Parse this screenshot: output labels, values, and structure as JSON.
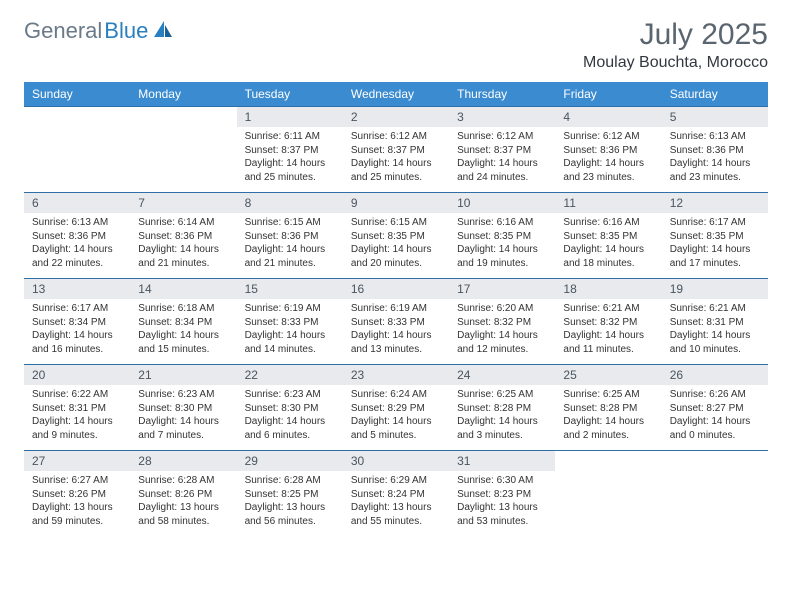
{
  "logo": {
    "text1": "General",
    "text2": "Blue"
  },
  "title": "July 2025",
  "location": "Moulay Bouchta, Morocco",
  "header_bg": "#3b8bd0",
  "daynum_bg": "#e8eaed",
  "week_border": "#2f6fa8",
  "day_headers": [
    "Sunday",
    "Monday",
    "Tuesday",
    "Wednesday",
    "Thursday",
    "Friday",
    "Saturday"
  ],
  "weeks": [
    [
      null,
      null,
      {
        "n": "1",
        "sunrise": "6:11 AM",
        "sunset": "8:37 PM",
        "daylight": "14 hours and 25 minutes."
      },
      {
        "n": "2",
        "sunrise": "6:12 AM",
        "sunset": "8:37 PM",
        "daylight": "14 hours and 25 minutes."
      },
      {
        "n": "3",
        "sunrise": "6:12 AM",
        "sunset": "8:37 PM",
        "daylight": "14 hours and 24 minutes."
      },
      {
        "n": "4",
        "sunrise": "6:12 AM",
        "sunset": "8:36 PM",
        "daylight": "14 hours and 23 minutes."
      },
      {
        "n": "5",
        "sunrise": "6:13 AM",
        "sunset": "8:36 PM",
        "daylight": "14 hours and 23 minutes."
      }
    ],
    [
      {
        "n": "6",
        "sunrise": "6:13 AM",
        "sunset": "8:36 PM",
        "daylight": "14 hours and 22 minutes."
      },
      {
        "n": "7",
        "sunrise": "6:14 AM",
        "sunset": "8:36 PM",
        "daylight": "14 hours and 21 minutes."
      },
      {
        "n": "8",
        "sunrise": "6:15 AM",
        "sunset": "8:36 PM",
        "daylight": "14 hours and 21 minutes."
      },
      {
        "n": "9",
        "sunrise": "6:15 AM",
        "sunset": "8:35 PM",
        "daylight": "14 hours and 20 minutes."
      },
      {
        "n": "10",
        "sunrise": "6:16 AM",
        "sunset": "8:35 PM",
        "daylight": "14 hours and 19 minutes."
      },
      {
        "n": "11",
        "sunrise": "6:16 AM",
        "sunset": "8:35 PM",
        "daylight": "14 hours and 18 minutes."
      },
      {
        "n": "12",
        "sunrise": "6:17 AM",
        "sunset": "8:35 PM",
        "daylight": "14 hours and 17 minutes."
      }
    ],
    [
      {
        "n": "13",
        "sunrise": "6:17 AM",
        "sunset": "8:34 PM",
        "daylight": "14 hours and 16 minutes."
      },
      {
        "n": "14",
        "sunrise": "6:18 AM",
        "sunset": "8:34 PM",
        "daylight": "14 hours and 15 minutes."
      },
      {
        "n": "15",
        "sunrise": "6:19 AM",
        "sunset": "8:33 PM",
        "daylight": "14 hours and 14 minutes."
      },
      {
        "n": "16",
        "sunrise": "6:19 AM",
        "sunset": "8:33 PM",
        "daylight": "14 hours and 13 minutes."
      },
      {
        "n": "17",
        "sunrise": "6:20 AM",
        "sunset": "8:32 PM",
        "daylight": "14 hours and 12 minutes."
      },
      {
        "n": "18",
        "sunrise": "6:21 AM",
        "sunset": "8:32 PM",
        "daylight": "14 hours and 11 minutes."
      },
      {
        "n": "19",
        "sunrise": "6:21 AM",
        "sunset": "8:31 PM",
        "daylight": "14 hours and 10 minutes."
      }
    ],
    [
      {
        "n": "20",
        "sunrise": "6:22 AM",
        "sunset": "8:31 PM",
        "daylight": "14 hours and 9 minutes."
      },
      {
        "n": "21",
        "sunrise": "6:23 AM",
        "sunset": "8:30 PM",
        "daylight": "14 hours and 7 minutes."
      },
      {
        "n": "22",
        "sunrise": "6:23 AM",
        "sunset": "8:30 PM",
        "daylight": "14 hours and 6 minutes."
      },
      {
        "n": "23",
        "sunrise": "6:24 AM",
        "sunset": "8:29 PM",
        "daylight": "14 hours and 5 minutes."
      },
      {
        "n": "24",
        "sunrise": "6:25 AM",
        "sunset": "8:28 PM",
        "daylight": "14 hours and 3 minutes."
      },
      {
        "n": "25",
        "sunrise": "6:25 AM",
        "sunset": "8:28 PM",
        "daylight": "14 hours and 2 minutes."
      },
      {
        "n": "26",
        "sunrise": "6:26 AM",
        "sunset": "8:27 PM",
        "daylight": "14 hours and 0 minutes."
      }
    ],
    [
      {
        "n": "27",
        "sunrise": "6:27 AM",
        "sunset": "8:26 PM",
        "daylight": "13 hours and 59 minutes."
      },
      {
        "n": "28",
        "sunrise": "6:28 AM",
        "sunset": "8:26 PM",
        "daylight": "13 hours and 58 minutes."
      },
      {
        "n": "29",
        "sunrise": "6:28 AM",
        "sunset": "8:25 PM",
        "daylight": "13 hours and 56 minutes."
      },
      {
        "n": "30",
        "sunrise": "6:29 AM",
        "sunset": "8:24 PM",
        "daylight": "13 hours and 55 minutes."
      },
      {
        "n": "31",
        "sunrise": "6:30 AM",
        "sunset": "8:23 PM",
        "daylight": "13 hours and 53 minutes."
      },
      null,
      null
    ]
  ]
}
